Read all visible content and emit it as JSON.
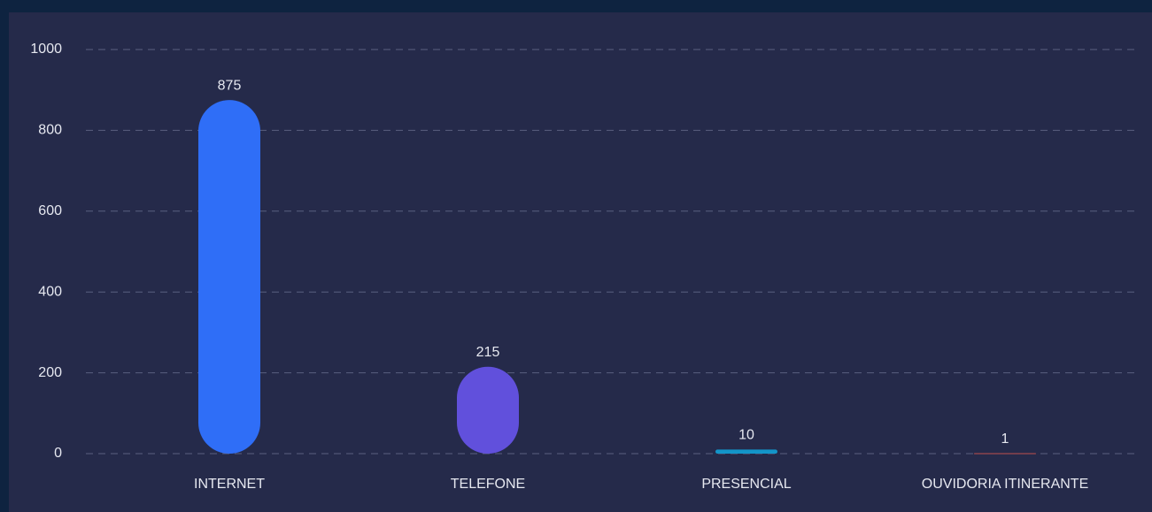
{
  "chart_data": {
    "type": "bar",
    "categories": [
      "INTERNET",
      "TELEFONE",
      "PRESENCIAL",
      "OUVIDORIA ITINERANTE"
    ],
    "values": [
      875,
      215,
      10,
      1
    ],
    "colors": [
      "#2f6ef7",
      "#6150dc",
      "#1395c9",
      "#c0504d"
    ],
    "ylim": [
      0,
      1000
    ],
    "yticks": [
      0,
      200,
      400,
      600,
      800,
      1000
    ],
    "grid": true
  }
}
